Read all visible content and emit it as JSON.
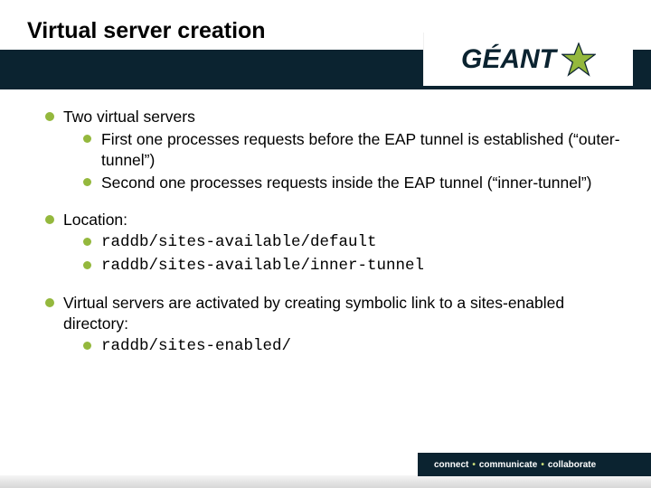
{
  "colors": {
    "band_bg": "#0b2330",
    "bullet_green": "#94b83d",
    "sep_green": "#c9dd7a",
    "text": "#000000",
    "bg": "#ffffff"
  },
  "title": "Virtual server creation",
  "logo": {
    "text": "GÉANT",
    "accent": "#94b83d"
  },
  "bullets": [
    {
      "text": "Two virtual servers",
      "sub": [
        {
          "text": "First one processes requests before the EAP tunnel is established (“outer-tunnel”)",
          "mono": false
        },
        {
          "text": "Second one processes requests inside the EAP tunnel (“inner-tunnel”)",
          "mono": false
        }
      ]
    },
    {
      "text": "Location:",
      "sub": [
        {
          "text": "raddb/sites-available/default",
          "mono": true
        },
        {
          "text": "raddb/sites-available/inner-tunnel",
          "mono": true
        }
      ]
    },
    {
      "text": "Virtual servers are activated by creating symbolic link to a sites-enabled directory:",
      "sub": [
        {
          "text": "raddb/sites-enabled/",
          "mono": true
        }
      ]
    }
  ],
  "footer": {
    "w1": "connect",
    "w2": "communicate",
    "w3": "collaborate",
    "sep": "•"
  }
}
